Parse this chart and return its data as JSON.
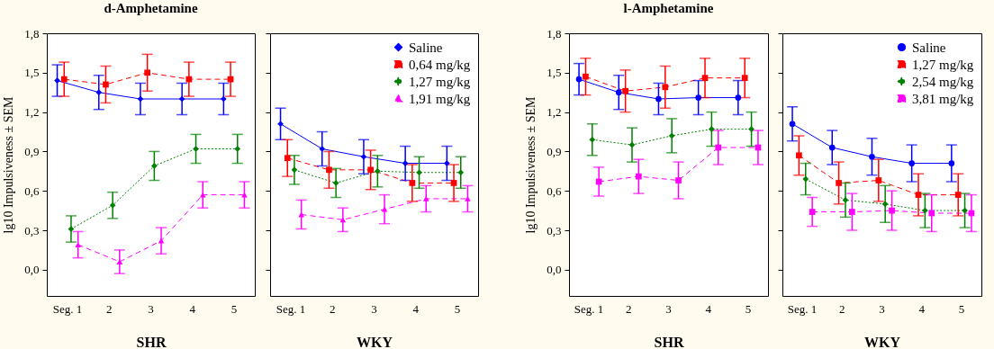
{
  "chart_data": [
    {
      "type": "line",
      "title": "d-Amphetamine",
      "xlabel": "SHR",
      "ylabel": "lg10 Impulsiveness ± SEM",
      "categories": [
        "Seg. 1",
        "2",
        "3",
        "4",
        "5"
      ],
      "ylim": [
        -0.2,
        1.8
      ],
      "yticks": [
        {
          "value": 0,
          "label": "0,0"
        },
        {
          "value": 0.3,
          "label": "0,3"
        },
        {
          "value": 0.6,
          "label": "0,6"
        },
        {
          "value": 0.9,
          "label": "0,9"
        },
        {
          "value": 1.2,
          "label": "1,2"
        },
        {
          "value": 1.5,
          "label": "1,5"
        },
        {
          "value": 1.8,
          "label": "1,8"
        }
      ],
      "grid": false,
      "legend": false,
      "series": [
        {
          "color": "#0000ff",
          "marker": "diamond",
          "line_style": "solid",
          "values": [
            1.44,
            1.35,
            1.3,
            1.3,
            1.3
          ],
          "errors": [
            0.12,
            0.13,
            0.12,
            0.12,
            0.12
          ]
        },
        {
          "color": "#ff0000",
          "marker": "square",
          "line_style": "dashed",
          "values": [
            1.45,
            1.41,
            1.5,
            1.45,
            1.45
          ],
          "errors": [
            0.13,
            0.14,
            0.14,
            0.13,
            0.13
          ]
        },
        {
          "color": "#008000",
          "marker": "diamond",
          "line_style": "dotted",
          "values": [
            0.31,
            0.49,
            0.79,
            0.92,
            0.92
          ],
          "errors": [
            0.1,
            0.1,
            0.11,
            0.11,
            0.11
          ]
        },
        {
          "color": "#ff00ff",
          "marker": "triangle",
          "line_style": "dashed",
          "values": [
            0.19,
            0.06,
            0.22,
            0.57,
            0.57
          ],
          "errors": [
            0.1,
            0.09,
            0.1,
            0.1,
            0.1
          ]
        }
      ]
    },
    {
      "type": "line",
      "xlabel": "WKY",
      "categories": [
        "Seg. 1",
        "2",
        "3",
        "4",
        "5"
      ],
      "ylim": [
        -0.2,
        1.8
      ],
      "yticks": [
        {
          "value": 0,
          "label": null
        },
        {
          "value": 0.3,
          "label": null
        },
        {
          "value": 0.6,
          "label": null
        },
        {
          "value": 0.9,
          "label": null
        },
        {
          "value": 1.2,
          "label": null
        },
        {
          "value": 1.5,
          "label": null
        },
        {
          "value": 1.8,
          "label": null
        }
      ],
      "tick_labels": "x",
      "grid": false,
      "legend": "top right",
      "series": [
        {
          "name": "Saline",
          "color": "#0000ff",
          "marker": "diamond",
          "line_style": "solid",
          "values": [
            1.11,
            0.92,
            0.86,
            0.81,
            0.81
          ],
          "errors": [
            0.12,
            0.13,
            0.13,
            0.13,
            0.13
          ]
        },
        {
          "name": "0,64 mg/kg",
          "color": "#ff0000",
          "marker": "square",
          "line_style": "dashed",
          "values": [
            0.85,
            0.76,
            0.76,
            0.66,
            0.66
          ],
          "errors": [
            0.14,
            0.14,
            0.15,
            0.14,
            0.14
          ]
        },
        {
          "name": "1,27 mg/kg",
          "color": "#008000",
          "marker": "diamond",
          "line_style": "dotted",
          "values": [
            0.76,
            0.66,
            0.75,
            0.74,
            0.74
          ],
          "errors": [
            0.11,
            0.11,
            0.12,
            0.12,
            0.12
          ]
        },
        {
          "name": "1,91 mg/kg",
          "color": "#ff00ff",
          "marker": "triangle",
          "line_style": "dashed",
          "values": [
            0.42,
            0.38,
            0.46,
            0.54,
            0.54
          ],
          "errors": [
            0.11,
            0.09,
            0.11,
            0.1,
            0.1
          ]
        }
      ]
    },
    {
      "type": "line",
      "title": "l-Amphetamine",
      "xlabel": "SHR",
      "ylabel": "lg10 Impulsiveness ± SEM",
      "categories": [
        "Seg. 1",
        "2",
        "3",
        "4",
        "5"
      ],
      "ylim": [
        -0.2,
        1.8
      ],
      "yticks": [
        {
          "value": 0,
          "label": "0,0"
        },
        {
          "value": 0.3,
          "label": "0,3"
        },
        {
          "value": 0.6,
          "label": "0,6"
        },
        {
          "value": 0.9,
          "label": "0,9"
        },
        {
          "value": 1.2,
          "label": "1,2"
        },
        {
          "value": 1.5,
          "label": "1,5"
        },
        {
          "value": 1.8,
          "label": "1,8"
        }
      ],
      "grid": false,
      "legend": false,
      "series": [
        {
          "color": "#0000ff",
          "marker": "circle",
          "line_style": "solid",
          "values": [
            1.45,
            1.35,
            1.3,
            1.31,
            1.31
          ],
          "errors": [
            0.12,
            0.13,
            0.12,
            0.13,
            0.13
          ]
        },
        {
          "color": "#ff0000",
          "marker": "square",
          "line_style": "dashed",
          "values": [
            1.47,
            1.36,
            1.39,
            1.46,
            1.46
          ],
          "errors": [
            0.14,
            0.16,
            0.16,
            0.15,
            0.15
          ]
        },
        {
          "color": "#008000",
          "marker": "diamond",
          "line_style": "dotted",
          "values": [
            0.99,
            0.95,
            1.02,
            1.07,
            1.07
          ],
          "errors": [
            0.12,
            0.13,
            0.13,
            0.13,
            0.13
          ]
        },
        {
          "color": "#ff00ff",
          "marker": "square",
          "line_style": "dashed",
          "values": [
            0.67,
            0.71,
            0.68,
            0.93,
            0.93
          ],
          "errors": [
            0.11,
            0.13,
            0.14,
            0.13,
            0.13
          ]
        }
      ]
    },
    {
      "type": "line",
      "xlabel": "WKY",
      "categories": [
        "Seg. 1",
        "2",
        "3",
        "4",
        "5"
      ],
      "ylim": [
        -0.2,
        1.8
      ],
      "yticks": [
        {
          "value": 0,
          "label": null
        },
        {
          "value": 0.3,
          "label": null
        },
        {
          "value": 0.6,
          "label": null
        },
        {
          "value": 0.9,
          "label": null
        },
        {
          "value": 1.2,
          "label": null
        },
        {
          "value": 1.5,
          "label": null
        },
        {
          "value": 1.8,
          "label": null
        }
      ],
      "tick_labels": "x",
      "grid": false,
      "legend": "top right",
      "series": [
        {
          "name": "Saline",
          "color": "#0000ff",
          "marker": "circle",
          "line_style": "solid",
          "values": [
            1.11,
            0.93,
            0.86,
            0.81,
            0.81
          ],
          "errors": [
            0.13,
            0.13,
            0.14,
            0.14,
            0.14
          ]
        },
        {
          "name": "1,27 mg/kg",
          "color": "#ff0000",
          "marker": "square",
          "line_style": "dashed",
          "values": [
            0.87,
            0.66,
            0.68,
            0.57,
            0.57
          ],
          "errors": [
            0.15,
            0.16,
            0.16,
            0.16,
            0.16
          ]
        },
        {
          "name": "2,54 mg/kg",
          "color": "#008000",
          "marker": "diamond",
          "line_style": "dotted",
          "values": [
            0.69,
            0.53,
            0.5,
            0.45,
            0.45
          ],
          "errors": [
            0.12,
            0.13,
            0.14,
            0.13,
            0.13
          ]
        },
        {
          "name": "3,81 mg/kg",
          "color": "#ff00ff",
          "marker": "square",
          "line_style": "dashed",
          "values": [
            0.44,
            0.44,
            0.45,
            0.43,
            0.43
          ],
          "errors": [
            0.11,
            0.14,
            0.15,
            0.14,
            0.14
          ]
        }
      ]
    }
  ]
}
